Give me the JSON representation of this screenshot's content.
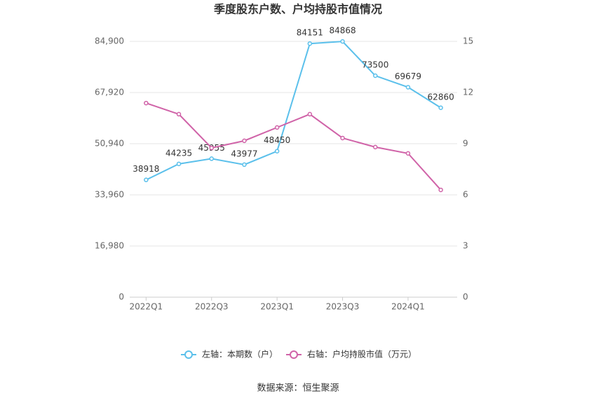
{
  "chart_data": {
    "type": "line",
    "title": "季度股东户数、户均持股市值情况",
    "categories": [
      "2022Q1",
      null,
      "2022Q3",
      null,
      "2023Q1",
      null,
      "2023Q3",
      null,
      "2024Q1",
      null
    ],
    "series": [
      {
        "name": "左轴：本期数（户）",
        "color": "#5bc0eb",
        "values": [
          38918,
          44235,
          45955,
          43977,
          48450,
          84151,
          84868,
          73500,
          69679,
          62860
        ]
      },
      {
        "name": "右轴：户均持股市值（万元）",
        "color": "#d063a8",
        "axis": "y2",
        "values": [
          11.38,
          10.73,
          8.75,
          9.17,
          9.95,
          10.73,
          9.33,
          8.8,
          8.43,
          6.29
        ]
      }
    ],
    "ylim": [
      0,
      84900
    ],
    "yticks": [
      0,
      {
        "value": 16980,
        "label": "16,980"
      },
      {
        "value": 33960,
        "label": "33,960"
      },
      {
        "value": 50940,
        "label": "50,940"
      },
      {
        "value": 67920,
        "label": "67,920"
      },
      {
        "value": 84900,
        "label": "84,900"
      }
    ],
    "y2lim": [
      0,
      15
    ],
    "y2ticks": [
      0,
      3,
      6,
      9,
      12,
      15
    ],
    "grid": true,
    "legend": "bottom",
    "source": "数据来源：恒生聚源"
  }
}
